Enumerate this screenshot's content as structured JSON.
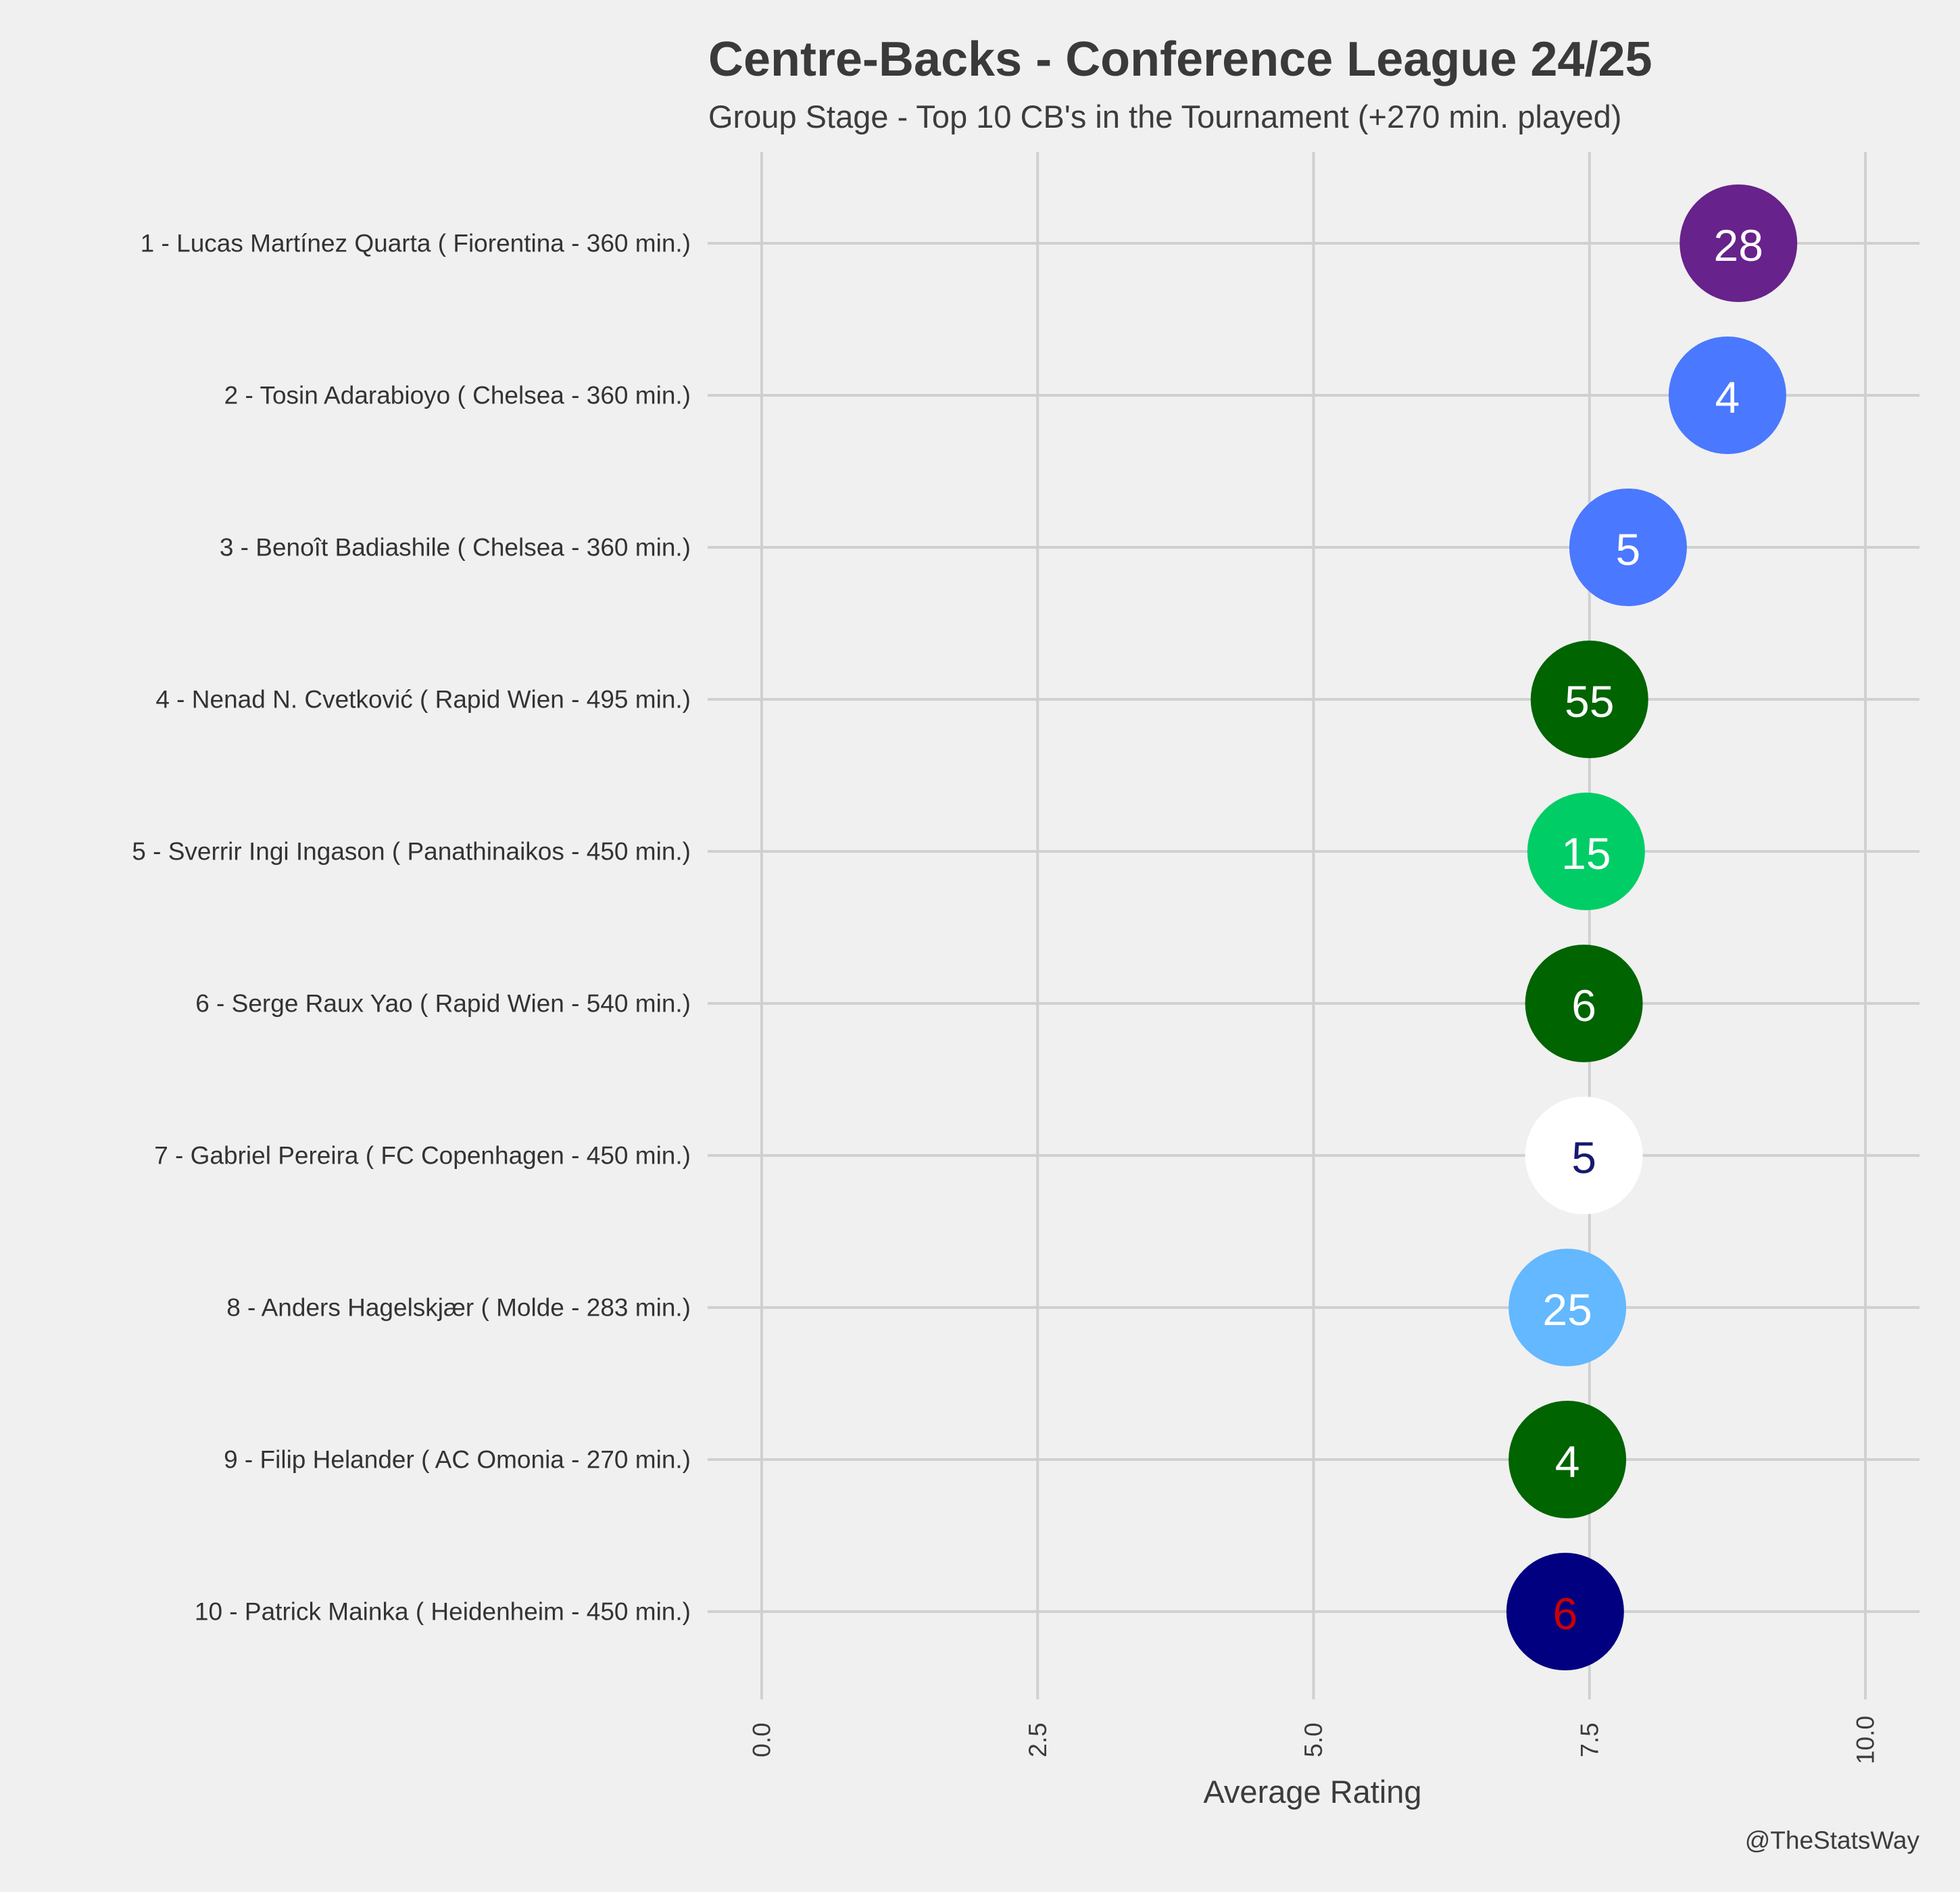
{
  "chart_data": {
    "type": "scatter",
    "title": "Centre-Backs - Conference League 24/25",
    "subtitle": "Group Stage - Top 10 CB's in the Tournament (+270 min. played)",
    "xlabel": "Average Rating",
    "ylabel": "",
    "xlim": [
      -0.3,
      10.5
    ],
    "xticks": [
      "0.0",
      "2.5",
      "5.0",
      "7.5",
      "10.0"
    ],
    "xtick_values": [
      0,
      2.5,
      5,
      7.5,
      10
    ],
    "grid": true,
    "credit": "@TheStatsWay",
    "players": [
      {
        "label": "1 - Lucas Martínez Quarta  ( Fiorentina - 360 min.)",
        "rating": 8.85,
        "number": "28",
        "color": "#68228b",
        "text_color": "#ffffff"
      },
      {
        "label": "2 - Tosin Adarabioyo  ( Chelsea - 360 min.)",
        "rating": 8.75,
        "number": "4",
        "color": "#4a78ff",
        "text_color": "#ffffff"
      },
      {
        "label": "3 - Benoît Badiashile  ( Chelsea - 360 min.)",
        "rating": 7.85,
        "number": "5",
        "color": "#4a78ff",
        "text_color": "#ffffff"
      },
      {
        "label": "4 - Nenad N. Cvetković  ( Rapid Wien - 495 min.)",
        "rating": 7.5,
        "number": "55",
        "color": "#006400",
        "text_color": "#ffffff"
      },
      {
        "label": "5 - Sverrir Ingi Ingason  ( Panathinaikos - 450 min.)",
        "rating": 7.47,
        "number": "15",
        "color": "#00cd66",
        "text_color": "#ffffff"
      },
      {
        "label": "6 - Serge Raux Yao  ( Rapid Wien - 540 min.)",
        "rating": 7.45,
        "number": "6",
        "color": "#006400",
        "text_color": "#ffffff"
      },
      {
        "label": "7 - Gabriel Pereira  ( FC Copenhagen - 450 min.)",
        "rating": 7.45,
        "number": "5",
        "color": "#ffffff",
        "text_color": "#191970"
      },
      {
        "label": "8 - Anders Hagelskjær  ( Molde - 283 min.)",
        "rating": 7.3,
        "number": "25",
        "color": "#63b8ff",
        "text_color": "#ffffff"
      },
      {
        "label": "9 - Filip Helander  ( AC Omonia - 270 min.)",
        "rating": 7.3,
        "number": "4",
        "color": "#006400",
        "text_color": "#ffffff"
      },
      {
        "label": "10 - Patrick Mainka  ( Heidenheim - 450 min.)",
        "rating": 7.28,
        "number": "6",
        "color": "#000080",
        "text_color": "#cd0000"
      }
    ]
  }
}
